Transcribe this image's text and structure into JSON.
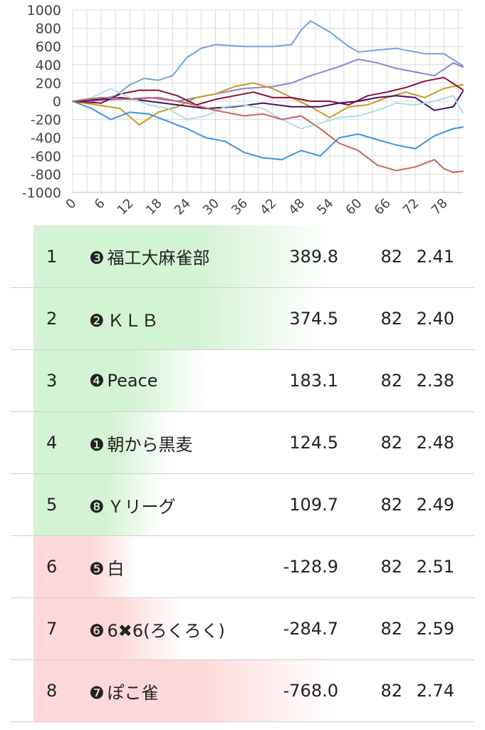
{
  "chart_data": {
    "type": "line",
    "yticks": [
      "1000",
      "800",
      "600",
      "400",
      "200",
      "0",
      "-200",
      "-400",
      "-600",
      "-800",
      "-1000"
    ],
    "xticks": [
      "0",
      "6",
      "12",
      "18",
      "24",
      "30",
      "36",
      "42",
      "48",
      "54",
      "60",
      "66",
      "72",
      "78"
    ],
    "xlim": [
      0,
      82
    ],
    "ylim": [
      -1000,
      1000
    ],
    "grid": true,
    "series": [
      {
        "color": "#6fa3dc",
        "points": [
          [
            0,
            0
          ],
          [
            3,
            -20
          ],
          [
            6,
            20
          ],
          [
            9,
            60
          ],
          [
            12,
            180
          ],
          [
            15,
            250
          ],
          [
            18,
            230
          ],
          [
            21,
            280
          ],
          [
            24,
            480
          ],
          [
            27,
            580
          ],
          [
            30,
            620
          ],
          [
            36,
            600
          ],
          [
            42,
            600
          ],
          [
            46,
            620
          ],
          [
            48,
            780
          ],
          [
            50,
            880
          ],
          [
            54,
            760
          ],
          [
            58,
            600
          ],
          [
            60,
            540
          ],
          [
            64,
            560
          ],
          [
            68,
            580
          ],
          [
            74,
            520
          ],
          [
            78,
            520
          ],
          [
            82,
            389.8
          ]
        ]
      },
      {
        "color": "#8f80d6",
        "points": [
          [
            0,
            0
          ],
          [
            10,
            20
          ],
          [
            16,
            40
          ],
          [
            22,
            0
          ],
          [
            30,
            80
          ],
          [
            36,
            140
          ],
          [
            42,
            160
          ],
          [
            46,
            200
          ],
          [
            50,
            280
          ],
          [
            56,
            380
          ],
          [
            60,
            460
          ],
          [
            64,
            420
          ],
          [
            68,
            360
          ],
          [
            72,
            320
          ],
          [
            76,
            280
          ],
          [
            80,
            420
          ],
          [
            82,
            374.5
          ]
        ]
      },
      {
        "color": "#c89a22",
        "points": [
          [
            0,
            0
          ],
          [
            5,
            -40
          ],
          [
            10,
            -80
          ],
          [
            14,
            -260
          ],
          [
            18,
            -120
          ],
          [
            22,
            -60
          ],
          [
            26,
            40
          ],
          [
            30,
            80
          ],
          [
            34,
            160
          ],
          [
            38,
            200
          ],
          [
            42,
            140
          ],
          [
            46,
            40
          ],
          [
            50,
            -60
          ],
          [
            54,
            -180
          ],
          [
            58,
            -60
          ],
          [
            62,
            -40
          ],
          [
            66,
            40
          ],
          [
            70,
            100
          ],
          [
            74,
            40
          ],
          [
            78,
            140
          ],
          [
            82,
            183.1
          ]
        ]
      },
      {
        "color": "#8a0e3a",
        "points": [
          [
            0,
            0
          ],
          [
            6,
            -20
          ],
          [
            10,
            80
          ],
          [
            14,
            120
          ],
          [
            18,
            120
          ],
          [
            22,
            60
          ],
          [
            26,
            -40
          ],
          [
            30,
            20
          ],
          [
            34,
            60
          ],
          [
            38,
            100
          ],
          [
            42,
            40
          ],
          [
            46,
            40
          ],
          [
            50,
            0
          ],
          [
            54,
            0
          ],
          [
            58,
            -40
          ],
          [
            62,
            60
          ],
          [
            66,
            100
          ],
          [
            70,
            150
          ],
          [
            74,
            220
          ],
          [
            78,
            260
          ],
          [
            82,
            124.5
          ]
        ]
      },
      {
        "color": "#4a0e6a",
        "points": [
          [
            0,
            0
          ],
          [
            6,
            20
          ],
          [
            10,
            40
          ],
          [
            16,
            0
          ],
          [
            22,
            -40
          ],
          [
            28,
            -80
          ],
          [
            34,
            -60
          ],
          [
            40,
            -20
          ],
          [
            46,
            -60
          ],
          [
            52,
            -60
          ],
          [
            56,
            -20
          ],
          [
            60,
            0
          ],
          [
            64,
            40
          ],
          [
            68,
            60
          ],
          [
            72,
            40
          ],
          [
            76,
            -100
          ],
          [
            80,
            -60
          ],
          [
            82,
            109.7
          ]
        ]
      },
      {
        "color": "#a8e0e8",
        "points": [
          [
            0,
            0
          ],
          [
            4,
            40
          ],
          [
            8,
            140
          ],
          [
            12,
            40
          ],
          [
            16,
            -40
          ],
          [
            20,
            -80
          ],
          [
            24,
            -200
          ],
          [
            28,
            -160
          ],
          [
            32,
            -60
          ],
          [
            36,
            -40
          ],
          [
            40,
            -80
          ],
          [
            44,
            -200
          ],
          [
            48,
            -300
          ],
          [
            52,
            -240
          ],
          [
            56,
            -180
          ],
          [
            60,
            -160
          ],
          [
            64,
            -100
          ],
          [
            68,
            -20
          ],
          [
            72,
            -40
          ],
          [
            76,
            0
          ],
          [
            80,
            60
          ],
          [
            82,
            -128.9
          ]
        ]
      },
      {
        "color": "#3a94d8",
        "points": [
          [
            0,
            0
          ],
          [
            4,
            -80
          ],
          [
            8,
            -200
          ],
          [
            12,
            -120
          ],
          [
            16,
            -140
          ],
          [
            20,
            -220
          ],
          [
            24,
            -300
          ],
          [
            28,
            -400
          ],
          [
            32,
            -440
          ],
          [
            36,
            -560
          ],
          [
            40,
            -620
          ],
          [
            44,
            -640
          ],
          [
            48,
            -540
          ],
          [
            52,
            -600
          ],
          [
            56,
            -400
          ],
          [
            60,
            -360
          ],
          [
            64,
            -420
          ],
          [
            68,
            -480
          ],
          [
            72,
            -520
          ],
          [
            76,
            -380
          ],
          [
            80,
            -300
          ],
          [
            82,
            -284.7
          ]
        ]
      },
      {
        "color": "#c8665c",
        "points": [
          [
            0,
            0
          ],
          [
            6,
            40
          ],
          [
            12,
            20
          ],
          [
            18,
            40
          ],
          [
            24,
            -20
          ],
          [
            30,
            -100
          ],
          [
            36,
            -160
          ],
          [
            40,
            -140
          ],
          [
            44,
            -200
          ],
          [
            48,
            -160
          ],
          [
            52,
            -300
          ],
          [
            56,
            -460
          ],
          [
            60,
            -540
          ],
          [
            64,
            -700
          ],
          [
            68,
            -760
          ],
          [
            72,
            -720
          ],
          [
            76,
            -640
          ],
          [
            78,
            -740
          ],
          [
            80,
            -780
          ],
          [
            82,
            -768.0
          ]
        ]
      }
    ]
  },
  "standings": [
    {
      "rank": "1",
      "mark": "❸",
      "team": "福工大麻雀部",
      "score": "389.8",
      "games": "82",
      "avg": "2.41",
      "tint": "green",
      "fill": 1.0
    },
    {
      "rank": "2",
      "mark": "❷",
      "team": "ＫＬＢ",
      "score": "374.5",
      "games": "82",
      "avg": "2.40",
      "tint": "green",
      "fill": 0.96
    },
    {
      "rank": "3",
      "mark": "❹",
      "team": "Peace",
      "score": "183.1",
      "games": "82",
      "avg": "2.38",
      "tint": "green",
      "fill": 0.47
    },
    {
      "rank": "4",
      "mark": "❶",
      "team": "朝から黒麦",
      "score": "124.5",
      "games": "82",
      "avg": "2.48",
      "tint": "green",
      "fill": 0.32
    },
    {
      "rank": "5",
      "mark": "❽",
      "team": "Ｙリーグ",
      "score": "109.7",
      "games": "82",
      "avg": "2.49",
      "tint": "green",
      "fill": 0.28
    },
    {
      "rank": "6",
      "mark": "❺",
      "team": "白",
      "score": "-128.9",
      "games": "82",
      "avg": "2.51",
      "tint": "red",
      "fill": 0.17
    },
    {
      "rank": "7",
      "mark": "❻",
      "team": "6✖6(ろくろく)",
      "score": "-284.7",
      "games": "82",
      "avg": "2.59",
      "tint": "red",
      "fill": 0.37
    },
    {
      "rank": "8",
      "mark": "❼",
      "team": "ぽこ雀",
      "score": "-768.0",
      "games": "82",
      "avg": "2.74",
      "tint": "red",
      "fill": 1.0
    }
  ],
  "tint_colors": {
    "green": "#d4f2d4",
    "red": "#fdd8d8"
  }
}
